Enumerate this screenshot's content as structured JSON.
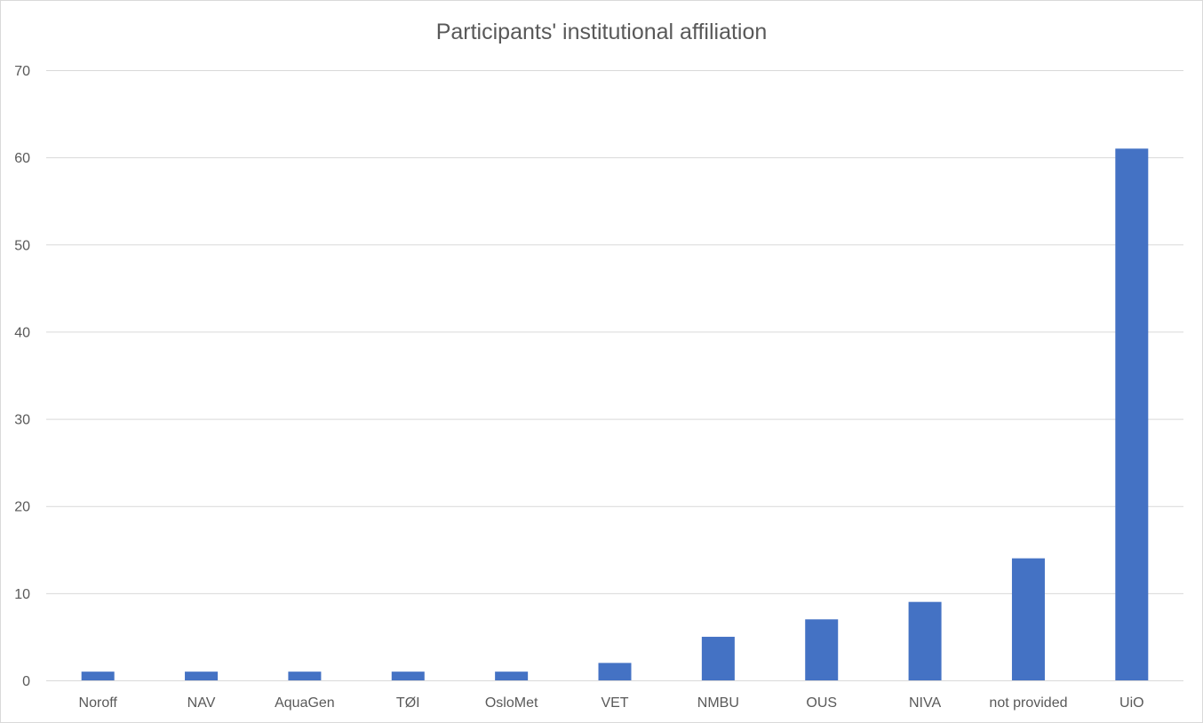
{
  "chart_data": {
    "type": "bar",
    "title": "Participants' institutional affiliation",
    "categories": [
      "Noroff",
      "NAV",
      "AquaGen",
      "TØI",
      "OsloMet",
      "VET",
      "NMBU",
      "OUS",
      "NIVA",
      "not provided",
      "UiO"
    ],
    "values": [
      1,
      1,
      1,
      1,
      1,
      2,
      5,
      7,
      9,
      14,
      61
    ],
    "xlabel": "",
    "ylabel": "",
    "ylim": [
      0,
      70
    ],
    "yticks": [
      0,
      10,
      20,
      30,
      40,
      50,
      60,
      70
    ],
    "grid": true,
    "legend": "none",
    "bar_color": "#4472c4"
  }
}
